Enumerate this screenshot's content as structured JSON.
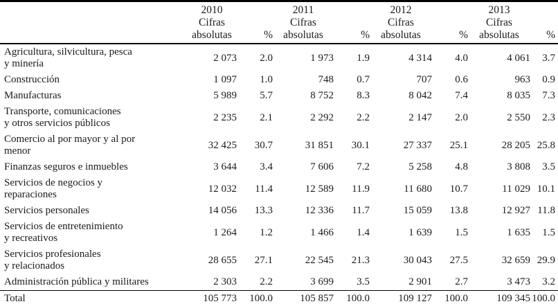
{
  "table": {
    "year_groups": [
      {
        "year": "2010",
        "subheader_line1": "Cifras",
        "subheader_line2": "absolutas",
        "percent_label": "%"
      },
      {
        "year": "2011",
        "subheader_line1": "Cifras",
        "subheader_line2": "absolutas",
        "percent_label": "%"
      },
      {
        "year": "2012",
        "subheader_line1": "Cifras",
        "subheader_line2": "absolutas",
        "percent_label": "%"
      },
      {
        "year": "2013",
        "subheader_line1": "Cifras",
        "subheader_line2": "absolutas",
        "percent_label": "%"
      }
    ],
    "rows": [
      {
        "label": "Agricultura, silvicultura, pesca\ny minería",
        "cells": [
          "2 073",
          "2.0",
          "1 973",
          "1.9",
          "4 314",
          "4.0",
          "4 061",
          "3.7"
        ]
      },
      {
        "label": "Construcción",
        "cells": [
          "1 097",
          "1.0",
          "748",
          "0.7",
          "707",
          "0.6",
          "963",
          "0.9"
        ]
      },
      {
        "label": "Manufacturas",
        "cells": [
          "5 989",
          "5.7",
          "8 752",
          "8.3",
          "8 042",
          "7.4",
          "8 035",
          "7.3"
        ]
      },
      {
        "label": "Transporte, comunicaciones\ny otros servicios públicos",
        "cells": [
          "2 235",
          "2.1",
          "2 292",
          "2.2",
          "2 147",
          "2.0",
          "2 550",
          "2.3"
        ]
      },
      {
        "label": "Comercio al por mayor y al por\nmenor",
        "cells": [
          "32 425",
          "30.7",
          "31 851",
          "30.1",
          "27 337",
          "25.1",
          "28 205",
          "25.8"
        ]
      },
      {
        "label": "Finanzas  seguros e inmuebles",
        "cells": [
          "3 644",
          "3.4",
          "7 606",
          "7.2",
          "5 258",
          "4.8",
          "3 808",
          "3.5"
        ]
      },
      {
        "label": "Servicios de negocios y\nreparaciones",
        "cells": [
          "12 032",
          "11.4",
          "12 589",
          "11.9",
          "11 680",
          "10.7",
          "11 029",
          "10.1"
        ]
      },
      {
        "label": "Servicios personales",
        "cells": [
          "14 056",
          "13.3",
          "12 336",
          "11.7",
          "15 059",
          "13.8",
          "12 927",
          "11.8"
        ]
      },
      {
        "label": "Servicios de entretenimiento\ny recreativos",
        "cells": [
          "1 264",
          "1.2",
          "1 466",
          "1.4",
          "1 639",
          "1.5",
          "1 635",
          "1.5"
        ]
      },
      {
        "label": "Servicios profesionales\ny relacionados",
        "cells": [
          "28 655",
          "27.1",
          "22 545",
          "21.3",
          "30 043",
          "27.5",
          "32 659",
          "29.9"
        ]
      },
      {
        "label": "Administración pública y militares",
        "cells": [
          "2 303",
          "2.2",
          "3 699",
          "3.5",
          "2 901",
          "2.7",
          "3 473",
          "3.2"
        ]
      },
      {
        "label": "Total",
        "total": true,
        "cells": [
          "105 773",
          "100.0",
          "105 857",
          "100.0",
          "109 127",
          "100.0",
          "109 345",
          "100.0"
        ]
      }
    ]
  },
  "colors": {
    "background": "#ffffff",
    "text": "#1a1a1a",
    "rule": "#000000",
    "bottom_rule": "#2b2b2b"
  }
}
